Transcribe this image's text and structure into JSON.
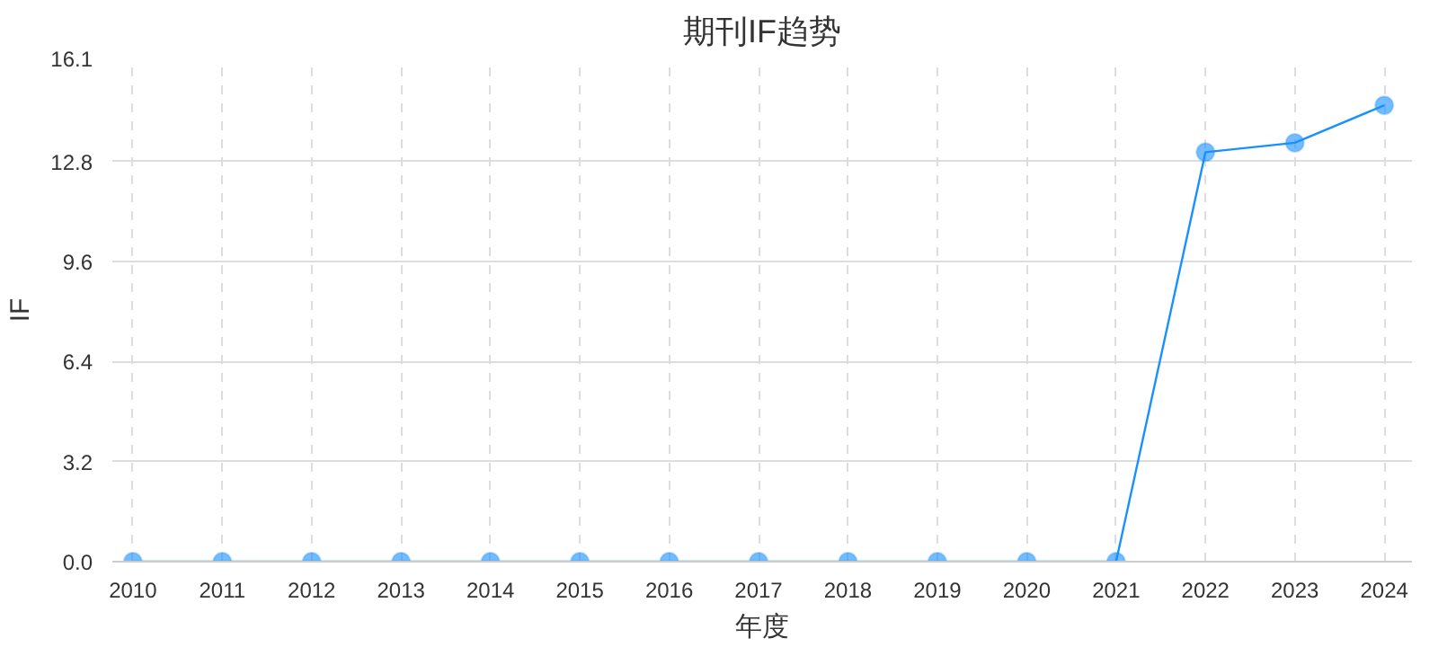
{
  "chart_data": {
    "type": "line",
    "title": "期刊IF趋势",
    "xlabel": "年度",
    "ylabel": "IF",
    "categories": [
      "2010",
      "2011",
      "2012",
      "2013",
      "2014",
      "2015",
      "2016",
      "2017",
      "2018",
      "2019",
      "2020",
      "2021",
      "2022",
      "2023",
      "2024"
    ],
    "series": [
      {
        "color": "#1890ff",
        "values": [
          0,
          0,
          0,
          0,
          0,
          0,
          0,
          0,
          0,
          0,
          0,
          0,
          13.1,
          13.4,
          14.6
        ]
      }
    ],
    "ylim": [
      0,
      16.1
    ],
    "yticks": [
      {
        "value": 0,
        "label": "0.0"
      },
      3.2,
      6.4,
      9.6,
      12.8,
      16.1
    ],
    "grid": true,
    "marker": "circle",
    "line_style": "solid"
  }
}
